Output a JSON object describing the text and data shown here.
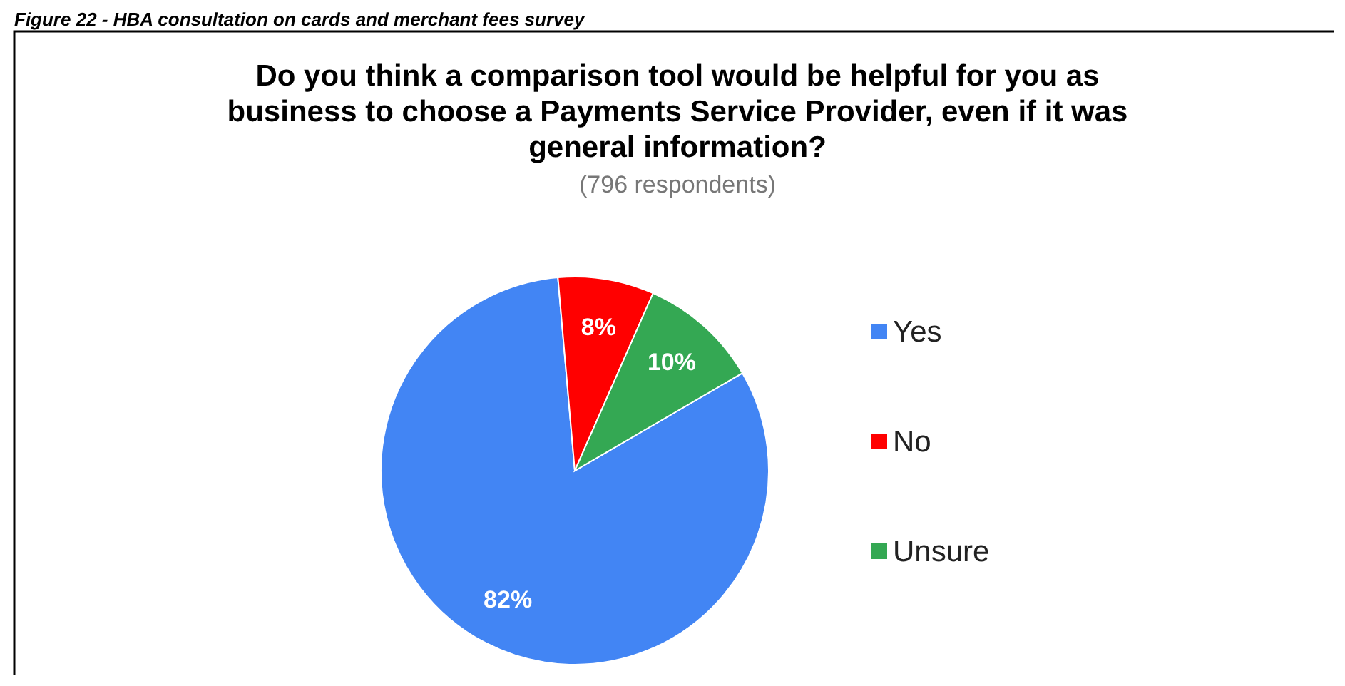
{
  "chart_data": {
    "type": "pie",
    "title": "Do you think a comparison tool would be helpful for you as business to choose a Payments Service Provider, even if it was general information?",
    "subtitle": "(796 respondents)",
    "annotations": [
      "Figure 22 - HBA consultation on cards and merchant fees survey"
    ],
    "categories": [
      "Yes",
      "No",
      "Unsure"
    ],
    "values": [
      82,
      8,
      10
    ],
    "colors": [
      "#4285f4",
      "#ff0000",
      "#34a853"
    ],
    "legend": "right",
    "value_labels": [
      "82%",
      "8%",
      "10%"
    ]
  }
}
